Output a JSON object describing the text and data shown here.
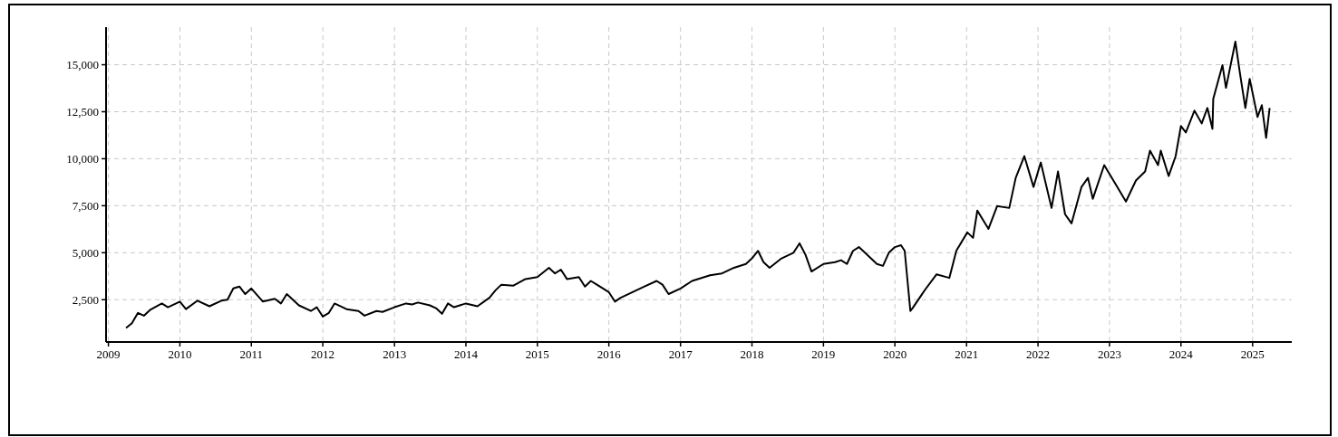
{
  "chart_data": {
    "type": "line",
    "grid": true,
    "line_style": "solid",
    "xlim": [
      "2008-12-20",
      "2025-07-20"
    ],
    "xticks": [
      "2009",
      "2010",
      "2011",
      "2012",
      "2013",
      "2014",
      "2015",
      "2016",
      "2017",
      "2018",
      "2019",
      "2020",
      "2021",
      "2022",
      "2023",
      "2024",
      "2025"
    ],
    "ylim": [
      250,
      17000
    ],
    "yticks": [
      {
        "value": 2500,
        "label": "2,500"
      },
      {
        "value": 5000,
        "label": "5,000"
      },
      {
        "value": 7500,
        "label": "7,500"
      },
      {
        "value": 10000,
        "label": "10,000"
      },
      {
        "value": 12500,
        "label": "12,500"
      },
      {
        "value": 15000,
        "label": "15,000"
      }
    ],
    "series": [
      {
        "color": "#000000",
        "x": [
          "2009-04",
          "2009-05",
          "2009-06",
          "2009-07",
          "2009-08",
          "2009-10",
          "2009-11",
          "2010-01",
          "2010-02",
          "2010-04",
          "2010-06",
          "2010-08",
          "2010-09",
          "2010-10",
          "2010-11",
          "2010-12",
          "2011-01",
          "2011-03",
          "2011-05",
          "2011-06",
          "2011-07",
          "2011-08",
          "2011-09",
          "2011-11",
          "2011-12",
          "2012-01",
          "2012-02",
          "2012-03",
          "2012-05",
          "2012-07",
          "2012-08",
          "2012-10",
          "2012-11",
          "2013-01",
          "2013-03",
          "2013-04",
          "2013-05",
          "2013-07",
          "2013-08",
          "2013-09",
          "2013-10",
          "2013-11",
          "2013-12",
          "2014-01",
          "2014-03",
          "2014-05",
          "2014-06",
          "2014-07",
          "2014-09",
          "2014-11",
          "2015-01",
          "2015-03",
          "2015-04",
          "2015-05",
          "2015-06",
          "2015-08",
          "2015-09",
          "2015-10",
          "2015-11",
          "2016-01",
          "2016-02",
          "2016-03",
          "2016-05",
          "2016-07",
          "2016-09",
          "2016-10",
          "2016-11",
          "2017-01",
          "2017-03",
          "2017-06",
          "2017-08",
          "2017-10",
          "2017-12",
          "2018-01",
          "2018-02",
          "2018-03",
          "2018-04",
          "2018-06",
          "2018-08",
          "2018-09",
          "2018-10",
          "2018-11",
          "2019-01",
          "2019-03",
          "2019-04",
          "2019-05",
          "2019-06",
          "2019-07",
          "2019-08",
          "2019-10",
          "2019-11",
          "2019-12",
          "2020-01",
          "2020-02",
          "2020-02-20",
          "2020-03-20",
          "2020-04-01",
          "2020-06-03",
          "2020-08-01",
          "2020-10-05",
          "2020-11-10",
          "2021-01-05",
          "2021-02-03",
          "2021-02-25",
          "2021-04-23",
          "2021-06-06",
          "2021-08-07",
          "2021-09-09",
          "2021-10-23",
          "2021-12-09",
          "2022-01-15",
          "2022-03-11",
          "2022-04-13",
          "2022-05-19",
          "2022-06-21",
          "2022-08-11",
          "2022-09-13",
          "2022-10-08",
          "2022-12-05",
          "2023-01-30",
          "2023-03-26",
          "2023-05-16",
          "2023-07-02",
          "2023-07-27",
          "2023-09-06",
          "2023-09-20",
          "2023-10-30",
          "2023-12-05",
          "2024-01-01",
          "2024-01-26",
          "2024-03-10",
          "2024-04-16",
          "2024-05-15",
          "2024-06-10",
          "2024-06-14",
          "2024-07-31",
          "2024-08-18",
          "2024-10-05",
          "2024-10-27",
          "2024-11-25",
          "2024-12-17",
          "2025-01-26",
          "2025-02-17",
          "2025-03-11",
          "2025-03-29"
        ],
        "values": [
          1000,
          1250,
          1800,
          1650,
          1950,
          2300,
          2100,
          2400,
          2000,
          2450,
          2150,
          2450,
          2500,
          3100,
          3200,
          2800,
          3100,
          2400,
          2550,
          2300,
          2800,
          2500,
          2200,
          1900,
          2100,
          1600,
          1800,
          2300,
          2000,
          1900,
          1650,
          1900,
          1850,
          2100,
          2300,
          2250,
          2350,
          2200,
          2050,
          1750,
          2300,
          2100,
          2200,
          2300,
          2150,
          2600,
          3000,
          3300,
          3250,
          3600,
          3700,
          4200,
          3900,
          4100,
          3600,
          3700,
          3200,
          3500,
          3300,
          2900,
          2400,
          2600,
          2900,
          3200,
          3500,
          3300,
          2800,
          3100,
          3500,
          3800,
          3900,
          4200,
          4400,
          4700,
          5100,
          4500,
          4200,
          4700,
          5000,
          5500,
          4900,
          4000,
          4400,
          4500,
          4600,
          4400,
          5100,
          5300,
          5000,
          4400,
          4300,
          5000,
          5300,
          5400,
          5100,
          1900,
          2060,
          3030,
          3850,
          3660,
          5110,
          6080,
          5790,
          7240,
          6270,
          7480,
          7380,
          8980,
          10140,
          8500,
          9800,
          7380,
          9320,
          7050,
          6560,
          8500,
          8980,
          7870,
          9660,
          8690,
          7720,
          8840,
          9320,
          10430,
          9660,
          10430,
          9080,
          10140,
          11740,
          11400,
          12560,
          11880,
          12700,
          11590,
          13190,
          14980,
          13770,
          16230,
          14640,
          12700,
          14250,
          12220,
          12850,
          11110,
          12700
        ]
      }
    ]
  }
}
